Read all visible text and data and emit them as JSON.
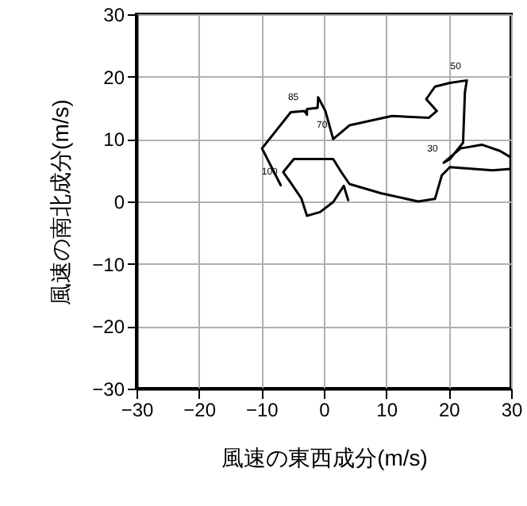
{
  "chart_data": {
    "type": "line",
    "xlabel": "風速の東西成分(m/s)",
    "ylabel": "風速の南北成分(m/s)",
    "x": [
      -6.9,
      -9.9,
      -5.3,
      -3.1,
      -2.7,
      -2.7,
      -1.0,
      -0.9,
      0.25,
      1.5,
      4.1,
      10.9,
      16.8,
      18.1,
      16.4,
      17.8,
      20.2,
      22.9,
      22.6,
      22.3,
      20.2,
      19.2,
      21.9,
      25.3,
      28.2,
      29.9,
      29.9,
      27.0,
      20.2,
      18.9,
      17.8,
      15.1,
      9.2,
      4.1,
      2.8,
      1.5,
      -4.8,
      -6.5,
      -5.3,
      -3.6,
      -2.7,
      -0.6,
      1.5,
      3.2,
      3.9
    ],
    "series": [
      {
        "color": "#000000",
        "values": [
          2.6,
          8.5,
          14.3,
          14.5,
          13.9,
          14.8,
          15.0,
          16.7,
          14.5,
          10.0,
          12.2,
          13.7,
          13.4,
          14.5,
          16.4,
          18.4,
          19.0,
          19.4,
          17.5,
          9.4,
          6.8,
          6.2,
          8.5,
          9.1,
          8.1,
          7.1,
          5.2,
          5.0,
          5.5,
          4.2,
          0.4,
          0.0,
          1.3,
          2.8,
          4.7,
          6.8,
          6.8,
          4.7,
          3.0,
          0.5,
          -2.3,
          -1.7,
          -0.1,
          2.5,
          0.2
        ]
      }
    ],
    "xlim": [
      -30,
      30
    ],
    "ylim": [
      -30,
      30
    ],
    "xticks": [
      -30,
      -20,
      -10,
      0,
      10,
      20,
      30
    ],
    "yticks": [
      -30,
      -20,
      -10,
      0,
      10,
      20,
      30
    ],
    "grid": true,
    "line_style": "solid",
    "annotations": [
      {
        "text": "100",
        "x": -6.9,
        "y": 2.6
      },
      {
        "text": "85",
        "x": -3.1,
        "y": 14.5
      },
      {
        "text": "70",
        "x": 1.5,
        "y": 10.0
      },
      {
        "text": "50",
        "x": 22.9,
        "y": 19.4
      },
      {
        "text": "30",
        "x": 19.2,
        "y": 6.2
      }
    ]
  }
}
